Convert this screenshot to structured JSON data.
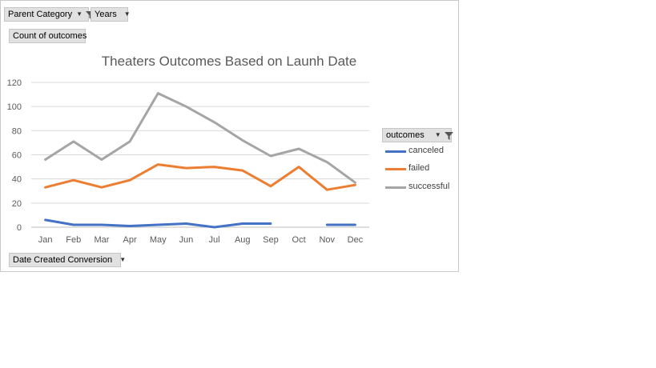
{
  "pivot": {
    "filters": [
      {
        "label": "Parent Category",
        "icon": "funnel-icon"
      },
      {
        "label": "Years",
        "icon": "dropdown-arrow-icon"
      }
    ],
    "values_field": "Count of outcomes",
    "axis_field": "Date Created Conversion",
    "legend_field": "outcomes"
  },
  "chart_data": {
    "type": "line",
    "title": "Theaters Outcomes Based on Launh Date",
    "categories": [
      "Jan",
      "Feb",
      "Mar",
      "Apr",
      "May",
      "Jun",
      "Jul",
      "Aug",
      "Sep",
      "Oct",
      "Nov",
      "Dec"
    ],
    "ylim": [
      0,
      120
    ],
    "yticks": [
      0,
      20,
      40,
      60,
      80,
      100,
      120
    ],
    "grid": true,
    "legend_position": "right",
    "series": [
      {
        "name": "canceled",
        "color": "#4472c4",
        "values": [
          6,
          2,
          2,
          1,
          2,
          3,
          0,
          3,
          3,
          null,
          2,
          2
        ]
      },
      {
        "name": "failed",
        "color": "#ed7d31",
        "values": [
          33,
          39,
          33,
          39,
          52,
          49,
          50,
          47,
          34,
          50,
          31,
          35
        ]
      },
      {
        "name": "successful",
        "color": "#a5a5a5",
        "values": [
          56,
          71,
          56,
          71,
          111,
          100,
          87,
          72,
          59,
          65,
          54,
          37
        ]
      }
    ]
  }
}
